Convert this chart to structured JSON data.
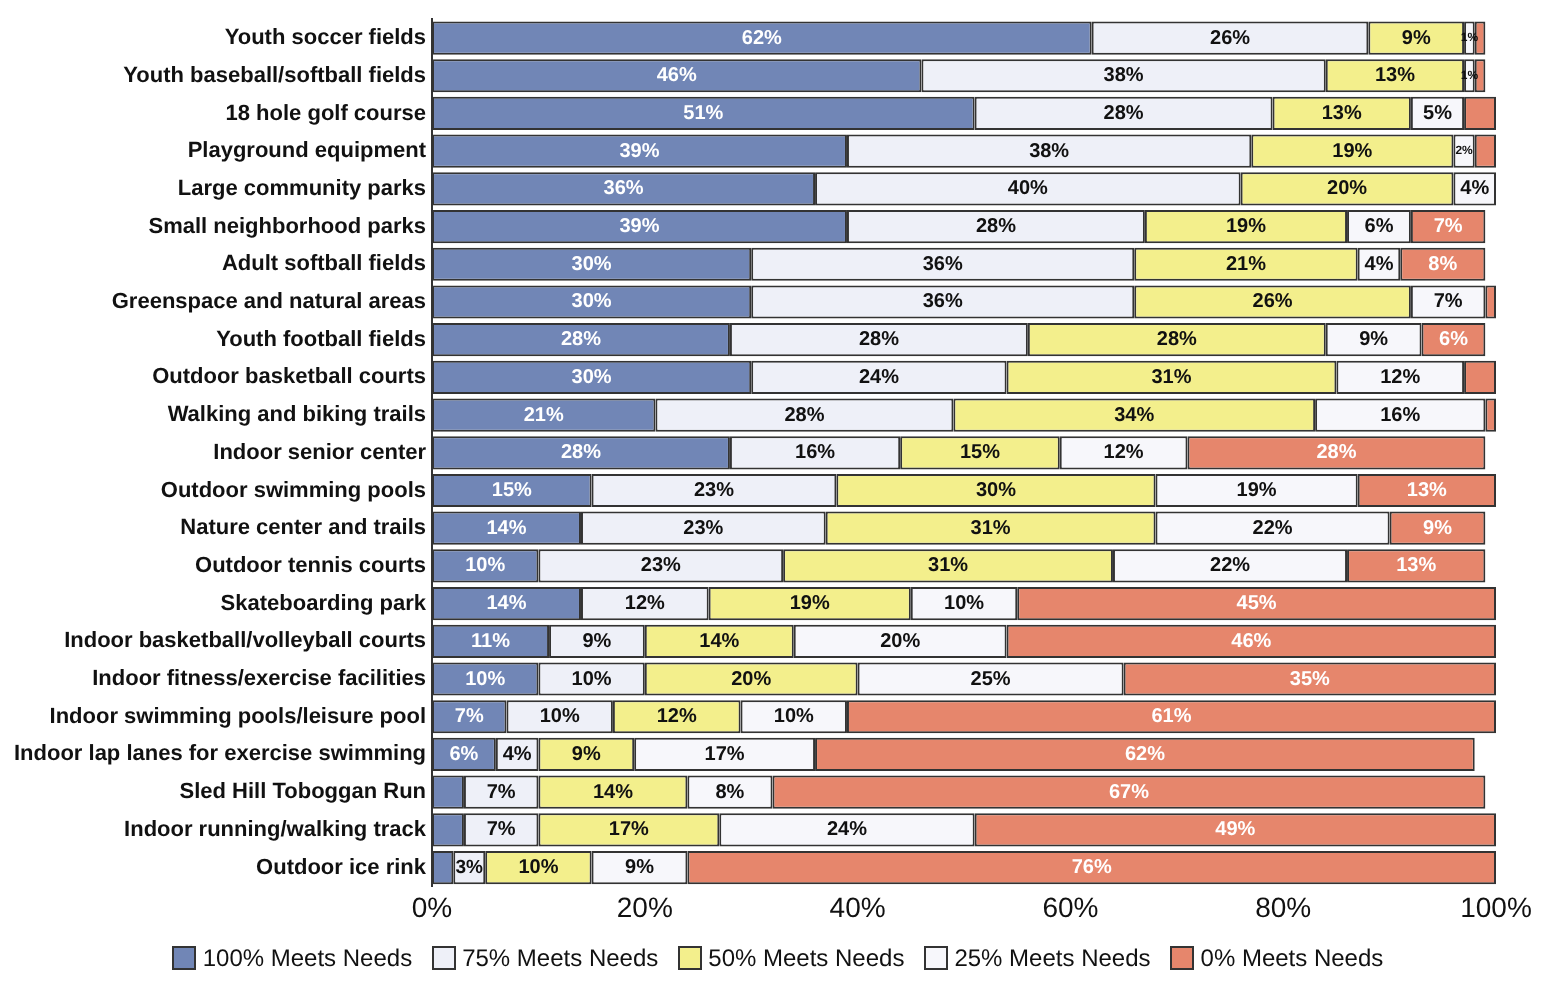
{
  "chart_data": {
    "type": "bar",
    "orientation": "horizontal",
    "stacked": true,
    "categories": [
      "Youth soccer fields",
      "Youth baseball/softball fields",
      "18 hole golf course",
      "Playground equipment",
      "Large community parks",
      "Small neighborhood parks",
      "Adult softball fields",
      "Greenspace and natural areas",
      "Youth football fields",
      "Outdoor basketball courts",
      "Walking and biking trails",
      "Indoor senior center",
      "Outdoor swimming pools",
      "Nature center and trails",
      "Outdoor tennis courts",
      "Skateboarding park",
      "Indoor basketball/volleyball courts",
      "Indoor fitness/exercise facilities",
      "Indoor swimming pools/leisure pool",
      "Indoor lap lanes for exercise swimming",
      "Sled Hill Toboggan Run",
      "Indoor running/walking track",
      "Outdoor ice rink"
    ],
    "series": [
      {
        "name": "100% Meets Needs",
        "color": "#7186b6",
        "values": [
          62,
          46,
          51,
          39,
          36,
          39,
          30,
          30,
          28,
          30,
          21,
          28,
          15,
          14,
          10,
          14,
          11,
          10,
          7,
          6,
          3,
          3,
          2
        ],
        "value_labels": [
          "62%",
          "46%",
          "51%",
          "39%",
          "36%",
          "39%",
          "30%",
          "30%",
          "28%",
          "30%",
          "21%",
          "28%",
          "15%",
          "14%",
          "10%",
          "14%",
          "11%",
          "10%",
          "7%",
          "6%",
          null,
          null,
          null
        ]
      },
      {
        "name": "75% Meets Needs",
        "color": "#eef0f8",
        "values": [
          26,
          38,
          28,
          38,
          40,
          28,
          36,
          36,
          28,
          24,
          28,
          16,
          23,
          23,
          23,
          12,
          9,
          10,
          10,
          4,
          7,
          7,
          3
        ],
        "value_labels": [
          "26%",
          "38%",
          "28%",
          "38%",
          "40%",
          "28%",
          "36%",
          "36%",
          "28%",
          "24%",
          "28%",
          "16%",
          "23%",
          "23%",
          "23%",
          "12%",
          "9%",
          "10%",
          "10%",
          "4%",
          "7%",
          "7%",
          "3%"
        ]
      },
      {
        "name": "50% Meets Needs",
        "color": "#f3ef8c",
        "values": [
          9,
          13,
          13,
          19,
          20,
          19,
          21,
          26,
          28,
          31,
          34,
          15,
          30,
          31,
          31,
          19,
          14,
          20,
          12,
          9,
          14,
          17,
          10
        ],
        "value_labels": [
          "9%",
          "13%",
          "13%",
          "19%",
          "20%",
          "19%",
          "21%",
          "26%",
          "28%",
          "31%",
          "34%",
          "15%",
          "30%",
          "31%",
          "31%",
          "19%",
          "14%",
          "20%",
          "12%",
          "9%",
          "14%",
          "17%",
          "10%"
        ]
      },
      {
        "name": "25% Meets Needs",
        "color": "#f7f7fb",
        "values": [
          1,
          1,
          5,
          2,
          4,
          6,
          4,
          7,
          9,
          12,
          16,
          12,
          19,
          22,
          22,
          10,
          20,
          25,
          10,
          17,
          8,
          24,
          9
        ],
        "value_labels": [
          "1%",
          "1%",
          "5%",
          "2%",
          "4%",
          "6%",
          "4%",
          "7%",
          "9%",
          "12%",
          "16%",
          "12%",
          "19%",
          "22%",
          "22%",
          "10%",
          "20%",
          "25%",
          "10%",
          "17%",
          "8%",
          "24%",
          "9%"
        ]
      },
      {
        "name": "0% Meets Needs",
        "color": "#e6866c",
        "values": [
          1,
          1,
          3,
          2,
          0,
          7,
          8,
          1,
          6,
          3,
          1,
          28,
          13,
          9,
          13,
          45,
          46,
          35,
          61,
          62,
          67,
          49,
          76
        ],
        "value_labels": [
          null,
          null,
          null,
          null,
          null,
          "7%",
          "8%",
          null,
          "6%",
          null,
          null,
          "28%",
          "13%",
          "9%",
          "13%",
          "45%",
          "46%",
          "35%",
          "61%",
          "62%",
          "67%",
          "49%",
          "76%"
        ]
      }
    ],
    "xlim": [
      0,
      100
    ],
    "xticks": [
      {
        "value": 0,
        "label": "0%"
      },
      {
        "value": 20,
        "label": "20%"
      },
      {
        "value": 40,
        "label": "40%"
      },
      {
        "value": 60,
        "label": "60%"
      },
      {
        "value": 80,
        "label": "80%"
      },
      {
        "value": 100,
        "label": "100%"
      }
    ],
    "grid": false,
    "legend": "bottom"
  }
}
